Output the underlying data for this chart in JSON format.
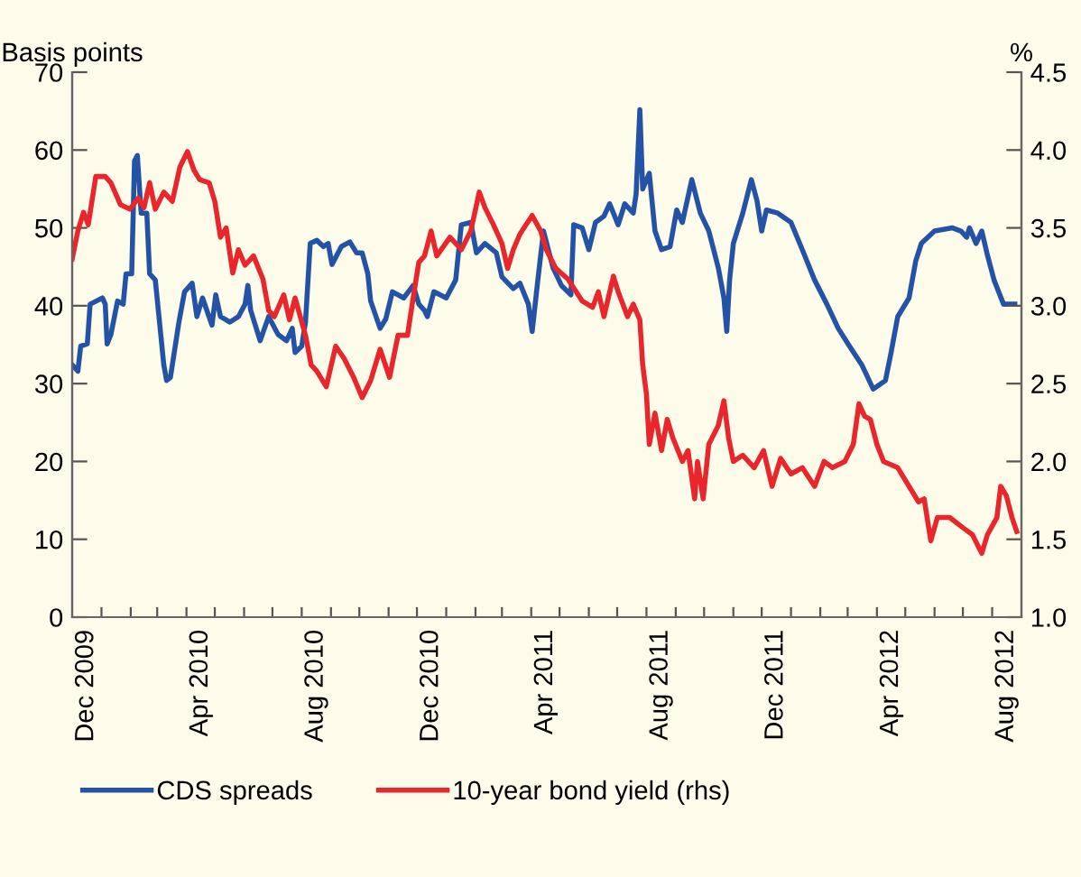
{
  "chart_data": {
    "type": "line",
    "ylabel": "Basis points",
    "y2label": "%",
    "xlim": [
      "2009-12-01",
      "2012-09-01"
    ],
    "xticks": [
      {
        "value": "2010-01-01",
        "label": null
      },
      {
        "value": "2010-02-01",
        "label": null
      },
      {
        "value": "2010-03-01",
        "label": null
      },
      {
        "value": "2010-04-01",
        "label": null
      },
      {
        "value": "2010-05-01",
        "label": null
      },
      {
        "value": "2010-06-01",
        "label": null
      },
      {
        "value": "2010-07-01",
        "label": null
      },
      {
        "value": "2010-08-01",
        "label": null
      },
      {
        "value": "2010-09-01",
        "label": null
      },
      {
        "value": "2010-10-01",
        "label": null
      },
      {
        "value": "2010-11-01",
        "label": null
      },
      {
        "value": "2010-12-01",
        "label": null
      },
      {
        "value": "2011-01-01",
        "label": null
      },
      {
        "value": "2011-02-01",
        "label": null
      },
      {
        "value": "2011-03-01",
        "label": null
      },
      {
        "value": "2011-04-01",
        "label": null
      },
      {
        "value": "2011-05-01",
        "label": null
      },
      {
        "value": "2011-06-01",
        "label": null
      },
      {
        "value": "2011-07-01",
        "label": null
      },
      {
        "value": "2011-08-01",
        "label": null
      },
      {
        "value": "2011-09-01",
        "label": null
      },
      {
        "value": "2011-10-01",
        "label": null
      },
      {
        "value": "2011-11-01",
        "label": null
      },
      {
        "value": "2011-12-01",
        "label": null
      },
      {
        "value": "2012-01-01",
        "label": null
      },
      {
        "value": "2012-02-01",
        "label": null
      },
      {
        "value": "2012-03-01",
        "label": null
      },
      {
        "value": "2012-04-01",
        "label": null
      },
      {
        "value": "2012-05-01",
        "label": null
      },
      {
        "value": "2012-06-01",
        "label": null
      },
      {
        "value": "2012-07-01",
        "label": null
      },
      {
        "value": "2012-08-01",
        "label": null
      },
      {
        "value": "2009-12-16",
        "label": "Dec 2009"
      },
      {
        "value": "2010-04-16",
        "label": "Apr 2010"
      },
      {
        "value": "2010-08-16",
        "label": "Aug 2010"
      },
      {
        "value": "2010-12-16",
        "label": "Dec 2010"
      },
      {
        "value": "2011-04-16",
        "label": "Apr 2011"
      },
      {
        "value": "2011-08-16",
        "label": "Aug 2011"
      },
      {
        "value": "2011-12-16",
        "label": "Dec 2011"
      },
      {
        "value": "2012-04-16",
        "label": "Apr 2012"
      },
      {
        "value": "2012-08-16",
        "label": "Aug 2012"
      }
    ],
    "ylim": [
      0,
      70
    ],
    "yticks": [
      0,
      10,
      20,
      30,
      40,
      50,
      60,
      70
    ],
    "y2lim": [
      1.0,
      4.5
    ],
    "y2ticks": [
      {
        "value": 1.0,
        "label": "1.0"
      },
      {
        "value": 1.5,
        "label": "1.5"
      },
      {
        "value": 2.0,
        "label": "2.0"
      },
      {
        "value": 2.5,
        "label": "2.5"
      },
      {
        "value": 3.0,
        "label": "3.0"
      },
      {
        "value": 3.5,
        "label": "3.5"
      },
      {
        "value": 4.0,
        "label": "4.0"
      },
      {
        "value": 4.5,
        "label": "4.5"
      }
    ],
    "grid": false,
    "legend": "bottom",
    "line_style": "solid",
    "marker": "none",
    "series": [
      {
        "name": "CDS spreads",
        "color": "#2452a4",
        "x": [
          "2009-12-01",
          "2009-12-07",
          "2009-12-10",
          "2009-12-17",
          "2009-12-20",
          "2010-01-02",
          "2010-01-05",
          "2010-01-07",
          "2010-01-11",
          "2010-01-18",
          "2010-01-24",
          "2010-01-27",
          "2010-02-02",
          "2010-02-05",
          "2010-02-08",
          "2010-02-12",
          "2010-02-18",
          "2010-02-21",
          "2010-02-27",
          "2010-03-08",
          "2010-03-11",
          "2010-03-15",
          "2010-03-24",
          "2010-03-30",
          "2010-04-07",
          "2010-04-12",
          "2010-04-18",
          "2010-04-28",
          "2010-05-02",
          "2010-05-07",
          "2010-05-17",
          "2010-05-26",
          "2010-06-02",
          "2010-06-05",
          "2010-06-08",
          "2010-06-18",
          "2010-06-27",
          "2010-07-07",
          "2010-07-16",
          "2010-07-22",
          "2010-07-25",
          "2010-08-01",
          "2010-08-05",
          "2010-08-10",
          "2010-08-17",
          "2010-08-24",
          "2010-08-29",
          "2010-09-02",
          "2010-09-12",
          "2010-09-21",
          "2010-09-28",
          "2010-10-04",
          "2010-10-10",
          "2010-10-13",
          "2010-10-23",
          "2010-10-29",
          "2010-11-05",
          "2010-11-17",
          "2010-11-27",
          "2010-12-03",
          "2010-12-09",
          "2010-12-12",
          "2010-12-19",
          "2011-01-01",
          "2011-01-11",
          "2011-01-17",
          "2011-01-27",
          "2011-02-02",
          "2011-02-11",
          "2011-02-23",
          "2011-03-01",
          "2011-03-13",
          "2011-03-20",
          "2011-03-29",
          "2011-04-02",
          "2011-04-08",
          "2011-04-14",
          "2011-04-24",
          "2011-05-03",
          "2011-05-13",
          "2011-05-16",
          "2011-05-25",
          "2011-06-01",
          "2011-06-08",
          "2011-06-17",
          "2011-06-23",
          "2011-07-02",
          "2011-07-09",
          "2011-07-18",
          "2011-07-21",
          "2011-07-25",
          "2011-07-28",
          "2011-08-04",
          "2011-08-10",
          "2011-08-17",
          "2011-08-26",
          "2011-09-02",
          "2011-09-08",
          "2011-09-18",
          "2011-09-27",
          "2011-10-06",
          "2011-10-16",
          "2011-10-22",
          "2011-10-25",
          "2011-10-28",
          "2011-11-01",
          "2011-11-11",
          "2011-11-20",
          "2011-11-26",
          "2011-12-01",
          "2011-12-06",
          "2011-12-18",
          "2012-01-01",
          "2012-01-13",
          "2012-01-26",
          "2012-02-08",
          "2012-02-20",
          "2012-03-03",
          "2012-03-16",
          "2012-03-28",
          "2012-04-10",
          "2012-04-16",
          "2012-04-23",
          "2012-05-05",
          "2012-05-12",
          "2012-05-18",
          "2012-06-01",
          "2012-06-20",
          "2012-06-29",
          "2012-07-05",
          "2012-07-08",
          "2012-07-15",
          "2012-07-21",
          "2012-07-27",
          "2012-08-03",
          "2012-08-13",
          "2012-08-25"
        ],
        "values": [
          32.4,
          31.6,
          34.8,
          35.1,
          40.2,
          41.0,
          40.2,
          35.1,
          36.3,
          40.6,
          40.2,
          44.1,
          44.1,
          58.6,
          59.3,
          51.9,
          51.9,
          44.1,
          43.3,
          32.4,
          30.4,
          30.8,
          37.9,
          41.8,
          42.9,
          38.6,
          41.0,
          37.5,
          41.4,
          38.6,
          37.9,
          38.6,
          40.2,
          42.6,
          39.4,
          35.5,
          38.6,
          36.3,
          35.5,
          37.1,
          34.0,
          34.8,
          37.9,
          48.0,
          48.4,
          47.6,
          48.0,
          45.3,
          47.6,
          48.2,
          46.8,
          46.8,
          44.1,
          40.6,
          37.1,
          38.3,
          41.8,
          41.0,
          42.6,
          40.2,
          39.4,
          38.6,
          41.8,
          41.0,
          43.3,
          50.4,
          50.7,
          46.8,
          48.0,
          46.8,
          43.7,
          42.2,
          42.9,
          40.2,
          36.7,
          43.3,
          49.6,
          44.9,
          42.6,
          41.4,
          50.4,
          50.0,
          47.2,
          50.7,
          51.5,
          53.1,
          50.4,
          53.1,
          51.9,
          54.3,
          65.2,
          55.0,
          57.0,
          49.6,
          47.2,
          47.6,
          52.3,
          50.7,
          56.2,
          51.9,
          49.6,
          44.9,
          41.0,
          36.7,
          43.3,
          48.0,
          51.9,
          56.2,
          53.5,
          49.6,
          52.3,
          51.9,
          50.7,
          47.2,
          43.3,
          40.2,
          37.1,
          34.8,
          32.4,
          29.3,
          30.4,
          34.0,
          38.6,
          41.0,
          45.7,
          48.0,
          49.6,
          50.0,
          49.6,
          48.8,
          50.0,
          48.0,
          49.6,
          46.5,
          43.3,
          40.2,
          40.2
        ]
      },
      {
        "name": "10-year bond yield (rhs)",
        "color": "#e8262b",
        "axis": "y2",
        "x": [
          "2009-12-01",
          "2009-12-07",
          "2009-12-13",
          "2009-12-18",
          "2009-12-26",
          "2010-01-05",
          "2010-01-11",
          "2010-01-21",
          "2010-01-31",
          "2010-02-09",
          "2010-02-15",
          "2010-02-21",
          "2010-02-27",
          "2010-03-08",
          "2010-03-17",
          "2010-03-25",
          "2010-04-02",
          "2010-04-09",
          "2010-04-15",
          "2010-04-25",
          "2010-05-01",
          "2010-05-07",
          "2010-05-13",
          "2010-05-20",
          "2010-05-26",
          "2010-06-02",
          "2010-06-11",
          "2010-06-21",
          "2010-06-27",
          "2010-07-03",
          "2010-07-13",
          "2010-07-19",
          "2010-07-25",
          "2010-08-05",
          "2010-08-11",
          "2010-08-17",
          "2010-08-27",
          "2010-09-06",
          "2010-09-15",
          "2010-09-25",
          "2010-10-04",
          "2010-10-13",
          "2010-10-23",
          "2010-11-02",
          "2010-11-11",
          "2010-11-21",
          "2010-11-27",
          "2010-12-03",
          "2010-12-09",
          "2010-12-16",
          "2010-12-22",
          "2011-01-05",
          "2011-01-17",
          "2011-01-27",
          "2011-02-05",
          "2011-02-11",
          "2011-02-20",
          "2011-03-01",
          "2011-03-07",
          "2011-03-13",
          "2011-03-20",
          "2011-04-02",
          "2011-04-11",
          "2011-04-17",
          "2011-04-27",
          "2011-05-10",
          "2011-05-25",
          "2011-06-05",
          "2011-06-11",
          "2011-06-17",
          "2011-06-27",
          "2011-07-02",
          "2011-07-12",
          "2011-07-18",
          "2011-07-25",
          "2011-07-28",
          "2011-08-01",
          "2011-08-04",
          "2011-08-10",
          "2011-08-17",
          "2011-08-23",
          "2011-08-29",
          "2011-09-08",
          "2011-09-14",
          "2011-09-21",
          "2011-09-24",
          "2011-09-30",
          "2011-10-06",
          "2011-10-16",
          "2011-10-22",
          "2011-10-27",
          "2011-11-01",
          "2011-11-11",
          "2011-11-23",
          "2011-12-03",
          "2011-12-12",
          "2011-12-21",
          "2012-01-01",
          "2012-01-13",
          "2012-01-26",
          "2012-02-05",
          "2012-02-14",
          "2012-02-27",
          "2012-03-07",
          "2012-03-13",
          "2012-03-19",
          "2012-03-25",
          "2012-04-01",
          "2012-04-08",
          "2012-04-23",
          "2012-05-05",
          "2012-05-15",
          "2012-05-21",
          "2012-05-28",
          "2012-06-04",
          "2012-06-17",
          "2012-07-02",
          "2012-07-11",
          "2012-07-21",
          "2012-07-27",
          "2012-08-06",
          "2012-08-10",
          "2012-08-16",
          "2012-08-22",
          "2012-08-27"
        ],
        "values": [
          3.3,
          3.48,
          3.6,
          3.52,
          3.83,
          3.83,
          3.79,
          3.65,
          3.62,
          3.69,
          3.63,
          3.79,
          3.62,
          3.73,
          3.67,
          3.89,
          3.99,
          3.87,
          3.81,
          3.79,
          3.67,
          3.44,
          3.5,
          3.21,
          3.36,
          3.26,
          3.32,
          3.17,
          2.97,
          2.93,
          3.07,
          2.91,
          3.05,
          2.81,
          2.62,
          2.58,
          2.48,
          2.74,
          2.66,
          2.54,
          2.41,
          2.52,
          2.72,
          2.54,
          2.81,
          2.81,
          3.05,
          3.28,
          3.32,
          3.48,
          3.32,
          3.44,
          3.36,
          3.48,
          3.73,
          3.63,
          3.52,
          3.4,
          3.24,
          3.36,
          3.46,
          3.58,
          3.48,
          3.36,
          3.24,
          3.17,
          3.03,
          2.99,
          3.09,
          2.93,
          3.19,
          3.09,
          2.93,
          3.01,
          2.91,
          2.62,
          2.43,
          2.11,
          2.31,
          2.07,
          2.27,
          2.15,
          2.0,
          2.07,
          1.76,
          2.0,
          1.76,
          2.11,
          2.23,
          2.39,
          2.15,
          2.0,
          2.04,
          1.96,
          2.07,
          1.84,
          2.02,
          1.92,
          1.96,
          1.84,
          2.0,
          1.96,
          2.0,
          2.11,
          2.37,
          2.29,
          2.27,
          2.11,
          2.0,
          1.96,
          1.84,
          1.74,
          1.76,
          1.49,
          1.64,
          1.64,
          1.57,
          1.53,
          1.41,
          1.53,
          1.64,
          1.84,
          1.78,
          1.64,
          1.55
        ]
      }
    ]
  }
}
